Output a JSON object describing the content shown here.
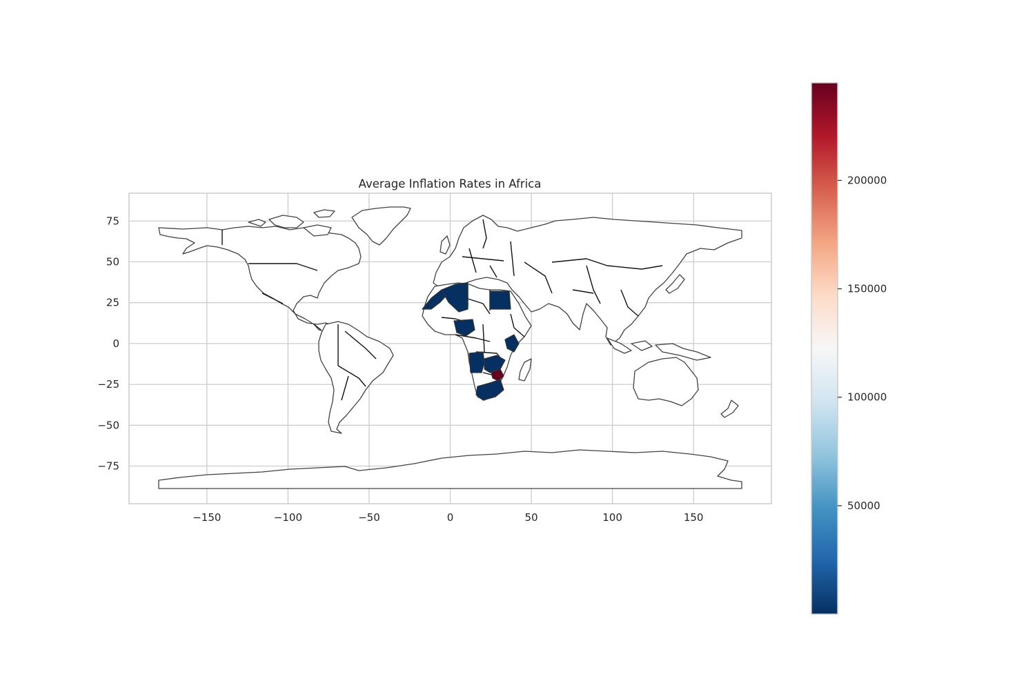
{
  "chart_data": {
    "type": "choropleth",
    "title": "Average Inflation Rates in Africa",
    "xlabel": "",
    "ylabel": "",
    "xlim": [
      -198,
      198
    ],
    "ylim": [
      -98,
      92
    ],
    "x_ticks": [
      -150,
      -100,
      -50,
      0,
      50,
      100,
      150
    ],
    "y_ticks": [
      75,
      50,
      25,
      0,
      -25,
      -50,
      -75
    ],
    "grid": true,
    "colormap": "RdBu_r",
    "colorbar": {
      "position": "right",
      "min": 0,
      "max": 245000,
      "ticks": [
        50000,
        100000,
        150000,
        200000
      ],
      "stops": [
        "#053061",
        "#2166ac",
        "#4393c3",
        "#92c5de",
        "#d1e5f0",
        "#f7f7f7",
        "#fddbc7",
        "#f4a582",
        "#d6604d",
        "#b2182b",
        "#67001f"
      ]
    },
    "highlighted_countries": [
      {
        "region": "Morocco",
        "value": 10
      },
      {
        "region": "Algeria",
        "value": 10
      },
      {
        "region": "Egypt",
        "value": 10
      },
      {
        "region": "Nigeria",
        "value": 10
      },
      {
        "region": "Kenya",
        "value": 10
      },
      {
        "region": "Angola",
        "value": 10
      },
      {
        "region": "Zambia",
        "value": 10
      },
      {
        "region": "Zimbabwe",
        "value": 245000
      },
      {
        "region": "South Africa",
        "value": 10
      }
    ]
  }
}
